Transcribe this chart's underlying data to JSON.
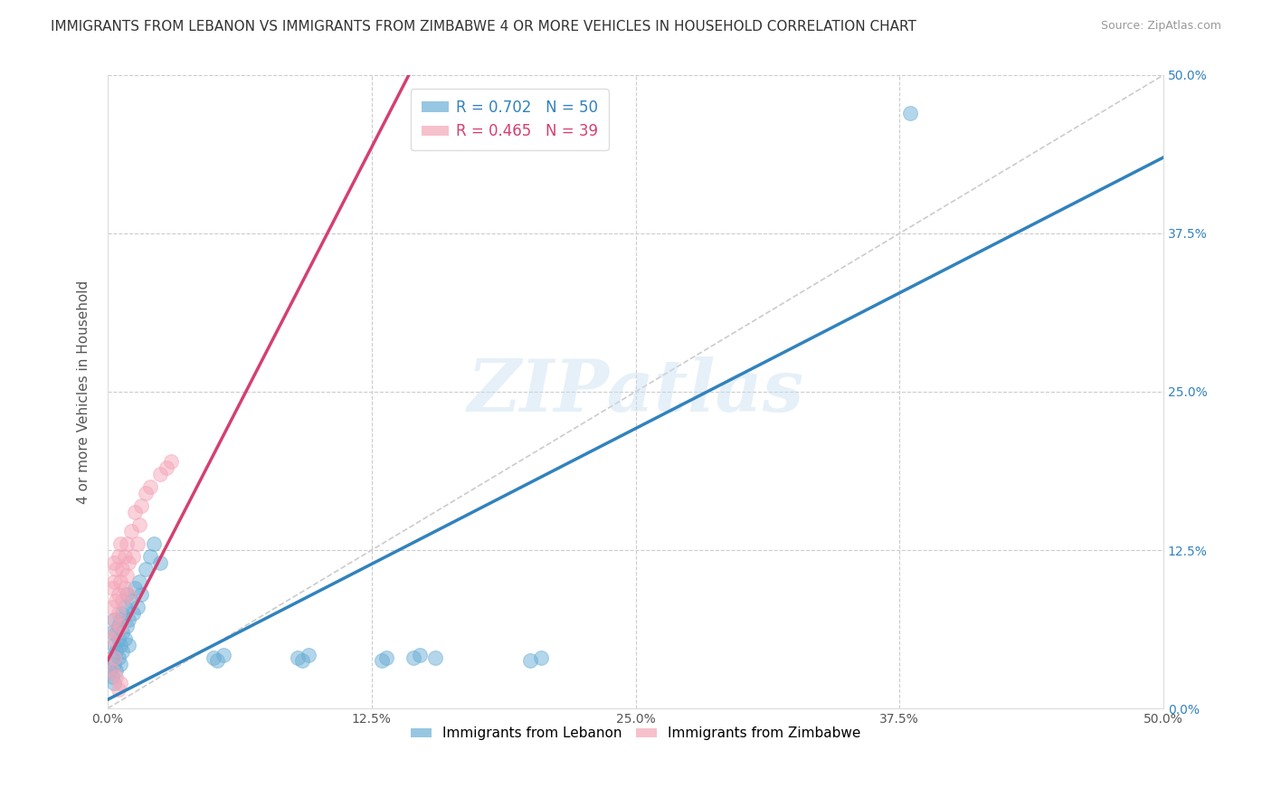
{
  "title": "IMMIGRANTS FROM LEBANON VS IMMIGRANTS FROM ZIMBABWE 4 OR MORE VEHICLES IN HOUSEHOLD CORRELATION CHART",
  "source": "Source: ZipAtlas.com",
  "ylabel": "4 or more Vehicles in Household",
  "xlim": [
    0.0,
    0.5
  ],
  "ylim": [
    0.0,
    0.5
  ],
  "xtick_vals": [
    0.0,
    0.125,
    0.25,
    0.375,
    0.5
  ],
  "ytick_vals": [
    0.0,
    0.125,
    0.25,
    0.375,
    0.5
  ],
  "watermark": "ZIPatlas",
  "lebanon_color": "#6baed6",
  "zimbabwe_color": "#f4a6b8",
  "lebanon_line_color": "#3182bd",
  "zimbabwe_line_color": "#d44070",
  "lebanon_line": [
    0.0,
    0.007,
    0.5,
    0.435
  ],
  "zimbabwe_line": [
    0.0,
    0.038,
    0.05,
    0.2
  ],
  "legend_label_1": "R = 0.702   N = 50",
  "legend_label_2": "R = 0.465   N = 39",
  "lebanon_points": [
    [
      0.001,
      0.03
    ],
    [
      0.002,
      0.025
    ],
    [
      0.002,
      0.04
    ],
    [
      0.003,
      0.035
    ],
    [
      0.003,
      0.02
    ],
    [
      0.003,
      0.05
    ],
    [
      0.004,
      0.045
    ],
    [
      0.004,
      0.06
    ],
    [
      0.004,
      0.03
    ],
    [
      0.005,
      0.055
    ],
    [
      0.005,
      0.04
    ],
    [
      0.005,
      0.065
    ],
    [
      0.006,
      0.05
    ],
    [
      0.006,
      0.07
    ],
    [
      0.006,
      0.035
    ],
    [
      0.007,
      0.06
    ],
    [
      0.007,
      0.075
    ],
    [
      0.007,
      0.045
    ],
    [
      0.008,
      0.055
    ],
    [
      0.008,
      0.08
    ],
    [
      0.009,
      0.065
    ],
    [
      0.009,
      0.09
    ],
    [
      0.01,
      0.07
    ],
    [
      0.01,
      0.05
    ],
    [
      0.011,
      0.085
    ],
    [
      0.012,
      0.075
    ],
    [
      0.013,
      0.095
    ],
    [
      0.014,
      0.08
    ],
    [
      0.015,
      0.1
    ],
    [
      0.016,
      0.09
    ],
    [
      0.018,
      0.11
    ],
    [
      0.02,
      0.12
    ],
    [
      0.022,
      0.13
    ],
    [
      0.025,
      0.115
    ],
    [
      0.05,
      0.04
    ],
    [
      0.052,
      0.038
    ],
    [
      0.055,
      0.042
    ],
    [
      0.09,
      0.04
    ],
    [
      0.092,
      0.038
    ],
    [
      0.095,
      0.042
    ],
    [
      0.13,
      0.038
    ],
    [
      0.132,
      0.04
    ],
    [
      0.145,
      0.04
    ],
    [
      0.148,
      0.042
    ],
    [
      0.155,
      0.04
    ],
    [
      0.2,
      0.038
    ],
    [
      0.205,
      0.04
    ],
    [
      0.38,
      0.47
    ],
    [
      0.002,
      0.06
    ],
    [
      0.003,
      0.07
    ]
  ],
  "zimbabwe_points": [
    [
      0.001,
      0.055
    ],
    [
      0.002,
      0.08
    ],
    [
      0.002,
      0.095
    ],
    [
      0.003,
      0.07
    ],
    [
      0.003,
      0.1
    ],
    [
      0.003,
      0.115
    ],
    [
      0.004,
      0.085
    ],
    [
      0.004,
      0.11
    ],
    [
      0.004,
      0.06
    ],
    [
      0.005,
      0.09
    ],
    [
      0.005,
      0.12
    ],
    [
      0.005,
      0.075
    ],
    [
      0.006,
      0.1
    ],
    [
      0.006,
      0.13
    ],
    [
      0.006,
      0.065
    ],
    [
      0.007,
      0.11
    ],
    [
      0.007,
      0.085
    ],
    [
      0.008,
      0.095
    ],
    [
      0.008,
      0.12
    ],
    [
      0.009,
      0.105
    ],
    [
      0.009,
      0.13
    ],
    [
      0.01,
      0.115
    ],
    [
      0.01,
      0.09
    ],
    [
      0.011,
      0.14
    ],
    [
      0.012,
      0.12
    ],
    [
      0.013,
      0.155
    ],
    [
      0.014,
      0.13
    ],
    [
      0.015,
      0.145
    ],
    [
      0.016,
      0.16
    ],
    [
      0.018,
      0.17
    ],
    [
      0.02,
      0.175
    ],
    [
      0.025,
      0.185
    ],
    [
      0.028,
      0.19
    ],
    [
      0.03,
      0.195
    ],
    [
      0.002,
      0.03
    ],
    [
      0.003,
      0.04
    ],
    [
      0.004,
      0.025
    ],
    [
      0.005,
      0.015
    ],
    [
      0.006,
      0.02
    ]
  ]
}
